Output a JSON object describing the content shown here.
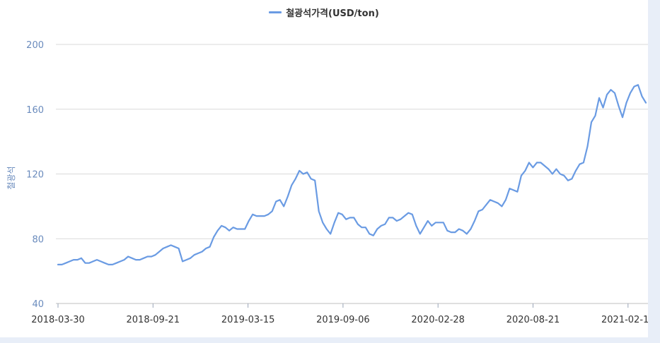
{
  "chart_data": {
    "type": "line",
    "title": "",
    "xlabel": "",
    "ylabel": "철광석",
    "ylim": [
      40,
      200
    ],
    "yticks": [
      40,
      80,
      120,
      160,
      200
    ],
    "xtick_labels": [
      "2018-03-30",
      "2018-09-21",
      "2019-03-15",
      "2019-09-06",
      "2020-02-28",
      "2020-08-21",
      "2021-02-12"
    ],
    "grid": true,
    "legend_position": "top-center",
    "series": [
      {
        "name": "철광석가격(USD/ton)",
        "color": "#6a9be3",
        "values": [
          64,
          64,
          65,
          66,
          67,
          67,
          68,
          65,
          65,
          66,
          67,
          66,
          65,
          64,
          64,
          65,
          66,
          67,
          69,
          68,
          67,
          67,
          68,
          69,
          69,
          70,
          72,
          74,
          75,
          76,
          75,
          74,
          66,
          67,
          68,
          70,
          71,
          72,
          74,
          75,
          81,
          85,
          88,
          87,
          85,
          87,
          86,
          86,
          86,
          91,
          95,
          94,
          94,
          94,
          95,
          97,
          103,
          104,
          100,
          106,
          113,
          117,
          122,
          120,
          121,
          117,
          116,
          97,
          90,
          86,
          83,
          90,
          96,
          95,
          92,
          93,
          93,
          89,
          87,
          87,
          83,
          82,
          86,
          88,
          89,
          93,
          93,
          91,
          92,
          94,
          96,
          95,
          88,
          83,
          87,
          91,
          88,
          90,
          90,
          90,
          85,
          84,
          84,
          86,
          85,
          83,
          86,
          91,
          97,
          98,
          101,
          104,
          103,
          102,
          100,
          104,
          111,
          110,
          109,
          119,
          122,
          127,
          124,
          127,
          127,
          125,
          123,
          120,
          123,
          120,
          119,
          116,
          117,
          122,
          126,
          127,
          137,
          152,
          156,
          167,
          161,
          169,
          172,
          170,
          162,
          155,
          164,
          170,
          174,
          175,
          168,
          164
        ]
      }
    ]
  }
}
